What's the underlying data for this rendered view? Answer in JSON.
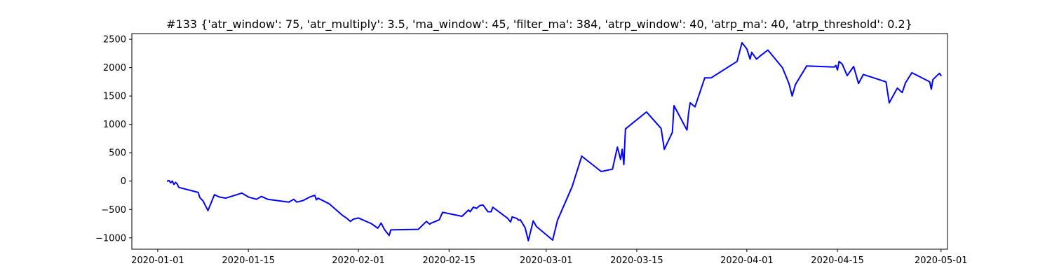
{
  "chart_data": {
    "type": "line",
    "title": "#133 {'atr_window': 75, 'atr_multiply': 3.5, 'ma_window': 45, 'filter_ma': 384, 'atrp_window': 40, 'atrp_ma': 40, 'atrp_threshold': 0.2}",
    "xlabel": "",
    "ylabel": "",
    "xlim": [
      "2019-12-28",
      "2020-05-02"
    ],
    "ylim": [
      -1200,
      2600
    ],
    "grid": false,
    "x_ticks": [
      "2020-01-01",
      "2020-01-15",
      "2020-02-01",
      "2020-02-15",
      "2020-03-01",
      "2020-03-15",
      "2020-04-01",
      "2020-04-15",
      "2020-05-01"
    ],
    "y_ticks": [
      -1000,
      -500,
      0,
      500,
      1000,
      1500,
      2000,
      2500
    ],
    "y_tick_labels": [
      "−1000",
      "−500",
      "0",
      "500",
      "1000",
      "1500",
      "2000",
      "2500"
    ],
    "series": [
      {
        "color": "#0000ff",
        "points": [
          [
            "2020-01-02 12:00",
            0
          ],
          [
            "2020-01-02 18:00",
            10
          ],
          [
            "2020-01-03 00:00",
            -30
          ],
          [
            "2020-01-03 06:00",
            0
          ],
          [
            "2020-01-03 12:00",
            -60
          ],
          [
            "2020-01-03 18:00",
            -20
          ],
          [
            "2020-01-04 00:00",
            -50
          ],
          [
            "2020-01-04 06:00",
            -110
          ],
          [
            "2020-01-07 06:00",
            -200
          ],
          [
            "2020-01-07 12:00",
            -290
          ],
          [
            "2020-01-08 00:00",
            -350
          ],
          [
            "2020-01-08 18:00",
            -520
          ],
          [
            "2020-01-09 18:00",
            -240
          ],
          [
            "2020-01-10 12:00",
            -280
          ],
          [
            "2020-01-11 12:00",
            -300
          ],
          [
            "2020-01-14 00:00",
            -210
          ],
          [
            "2020-01-15 00:00",
            -280
          ],
          [
            "2020-01-16 06:00",
            -320
          ],
          [
            "2020-01-17 00:00",
            -270
          ],
          [
            "2020-01-18 00:00",
            -320
          ],
          [
            "2020-01-21 06:00",
            -370
          ],
          [
            "2020-01-22 00:00",
            -320
          ],
          [
            "2020-01-22 12:00",
            -370
          ],
          [
            "2020-01-23 12:00",
            -340
          ],
          [
            "2020-01-24 12:00",
            -280
          ],
          [
            "2020-01-25 06:00",
            -250
          ],
          [
            "2020-01-25 12:00",
            -330
          ],
          [
            "2020-01-25 18:00",
            -300
          ],
          [
            "2020-01-27 12:00",
            -400
          ],
          [
            "2020-01-29 12:00",
            -600
          ],
          [
            "2020-01-30 06:00",
            -660
          ],
          [
            "2020-01-30 18:00",
            -710
          ],
          [
            "2020-01-31 06:00",
            -670
          ],
          [
            "2020-02-01 00:00",
            -650
          ],
          [
            "2020-02-03 00:00",
            -750
          ],
          [
            "2020-02-04 00:00",
            -830
          ],
          [
            "2020-02-04 12:00",
            -740
          ],
          [
            "2020-02-05 00:00",
            -850
          ],
          [
            "2020-02-05 18:00",
            -960
          ],
          [
            "2020-02-06 00:00",
            -860
          ],
          [
            "2020-02-10 06:00",
            -850
          ],
          [
            "2020-02-11 12:00",
            -710
          ],
          [
            "2020-02-12 00:00",
            -760
          ],
          [
            "2020-02-12 06:00",
            -740
          ],
          [
            "2020-02-13 12:00",
            -680
          ],
          [
            "2020-02-14 00:00",
            -550
          ],
          [
            "2020-02-17 00:00",
            -620
          ],
          [
            "2020-02-18 00:00",
            -510
          ],
          [
            "2020-02-18 06:00",
            -540
          ],
          [
            "2020-02-18 18:00",
            -460
          ],
          [
            "2020-02-19 06:00",
            -480
          ],
          [
            "2020-02-19 18:00",
            -430
          ],
          [
            "2020-02-20 06:00",
            -420
          ],
          [
            "2020-02-21 00:00",
            -540
          ],
          [
            "2020-02-21 12:00",
            -540
          ],
          [
            "2020-02-21 18:00",
            -460
          ],
          [
            "2020-02-24 00:00",
            -650
          ],
          [
            "2020-02-24 12:00",
            -720
          ],
          [
            "2020-02-24 18:00",
            -630
          ],
          [
            "2020-02-25 12:00",
            -660
          ],
          [
            "2020-02-25 18:00",
            -690
          ],
          [
            "2020-02-26 00:00",
            -680
          ],
          [
            "2020-02-26 18:00",
            -820
          ],
          [
            "2020-02-27 06:00",
            -1050
          ],
          [
            "2020-02-28 00:00",
            -700
          ],
          [
            "2020-02-28 12:00",
            -800
          ],
          [
            "2020-03-02 00:00",
            -1040
          ],
          [
            "2020-03-02 18:00",
            -690
          ],
          [
            "2020-03-05 00:00",
            -100
          ],
          [
            "2020-03-06 12:00",
            440
          ],
          [
            "2020-03-09 12:00",
            170
          ],
          [
            "2020-03-11 06:00",
            210
          ],
          [
            "2020-03-12 00:00",
            600
          ],
          [
            "2020-03-12 12:00",
            380
          ],
          [
            "2020-03-12 18:00",
            560
          ],
          [
            "2020-03-13 00:00",
            290
          ],
          [
            "2020-03-13 06:00",
            920
          ],
          [
            "2020-03-16 12:00",
            1220
          ],
          [
            "2020-03-18 18:00",
            930
          ],
          [
            "2020-03-19 06:00",
            560
          ],
          [
            "2020-03-20 12:00",
            860
          ],
          [
            "2020-03-20 18:00",
            1330
          ],
          [
            "2020-03-22 18:00",
            900
          ],
          [
            "2020-03-23 00:00",
            1200
          ],
          [
            "2020-03-23 06:00",
            1380
          ],
          [
            "2020-03-24 00:00",
            1310
          ],
          [
            "2020-03-25 12:00",
            1820
          ],
          [
            "2020-03-26 12:00",
            1820
          ],
          [
            "2020-03-30 12:00",
            2110
          ],
          [
            "2020-03-31 06:00",
            2440
          ],
          [
            "2020-04-01 00:00",
            2330
          ],
          [
            "2020-04-01 12:00",
            2150
          ],
          [
            "2020-04-01 18:00",
            2270
          ],
          [
            "2020-04-02 12:00",
            2150
          ],
          [
            "2020-04-03 00:00",
            2200
          ],
          [
            "2020-04-04 06:00",
            2310
          ],
          [
            "2020-04-06 12:00",
            2000
          ],
          [
            "2020-04-07 12:00",
            1720
          ],
          [
            "2020-04-08 00:00",
            1500
          ],
          [
            "2020-04-08 12:00",
            1700
          ],
          [
            "2020-04-10 06:00",
            2030
          ],
          [
            "2020-04-14 12:00",
            2010
          ],
          [
            "2020-04-14 18:00",
            2040
          ],
          [
            "2020-04-15 00:00",
            1960
          ],
          [
            "2020-04-15 06:00",
            2110
          ],
          [
            "2020-04-15 18:00",
            2060
          ],
          [
            "2020-04-16 12:00",
            1860
          ],
          [
            "2020-04-17 12:00",
            2020
          ],
          [
            "2020-04-18 06:00",
            1720
          ],
          [
            "2020-04-19 00:00",
            1880
          ],
          [
            "2020-04-22 12:00",
            1750
          ],
          [
            "2020-04-23 00:00",
            1380
          ],
          [
            "2020-04-24 06:00",
            1640
          ],
          [
            "2020-04-25 00:00",
            1560
          ],
          [
            "2020-04-25 12:00",
            1730
          ],
          [
            "2020-04-26 12:00",
            1910
          ],
          [
            "2020-04-29 06:00",
            1750
          ],
          [
            "2020-04-29 12:00",
            1620
          ],
          [
            "2020-04-29 18:00",
            1790
          ],
          [
            "2020-04-30 18:00",
            1900
          ],
          [
            "2020-05-01 00:00",
            1860
          ]
        ]
      }
    ]
  }
}
